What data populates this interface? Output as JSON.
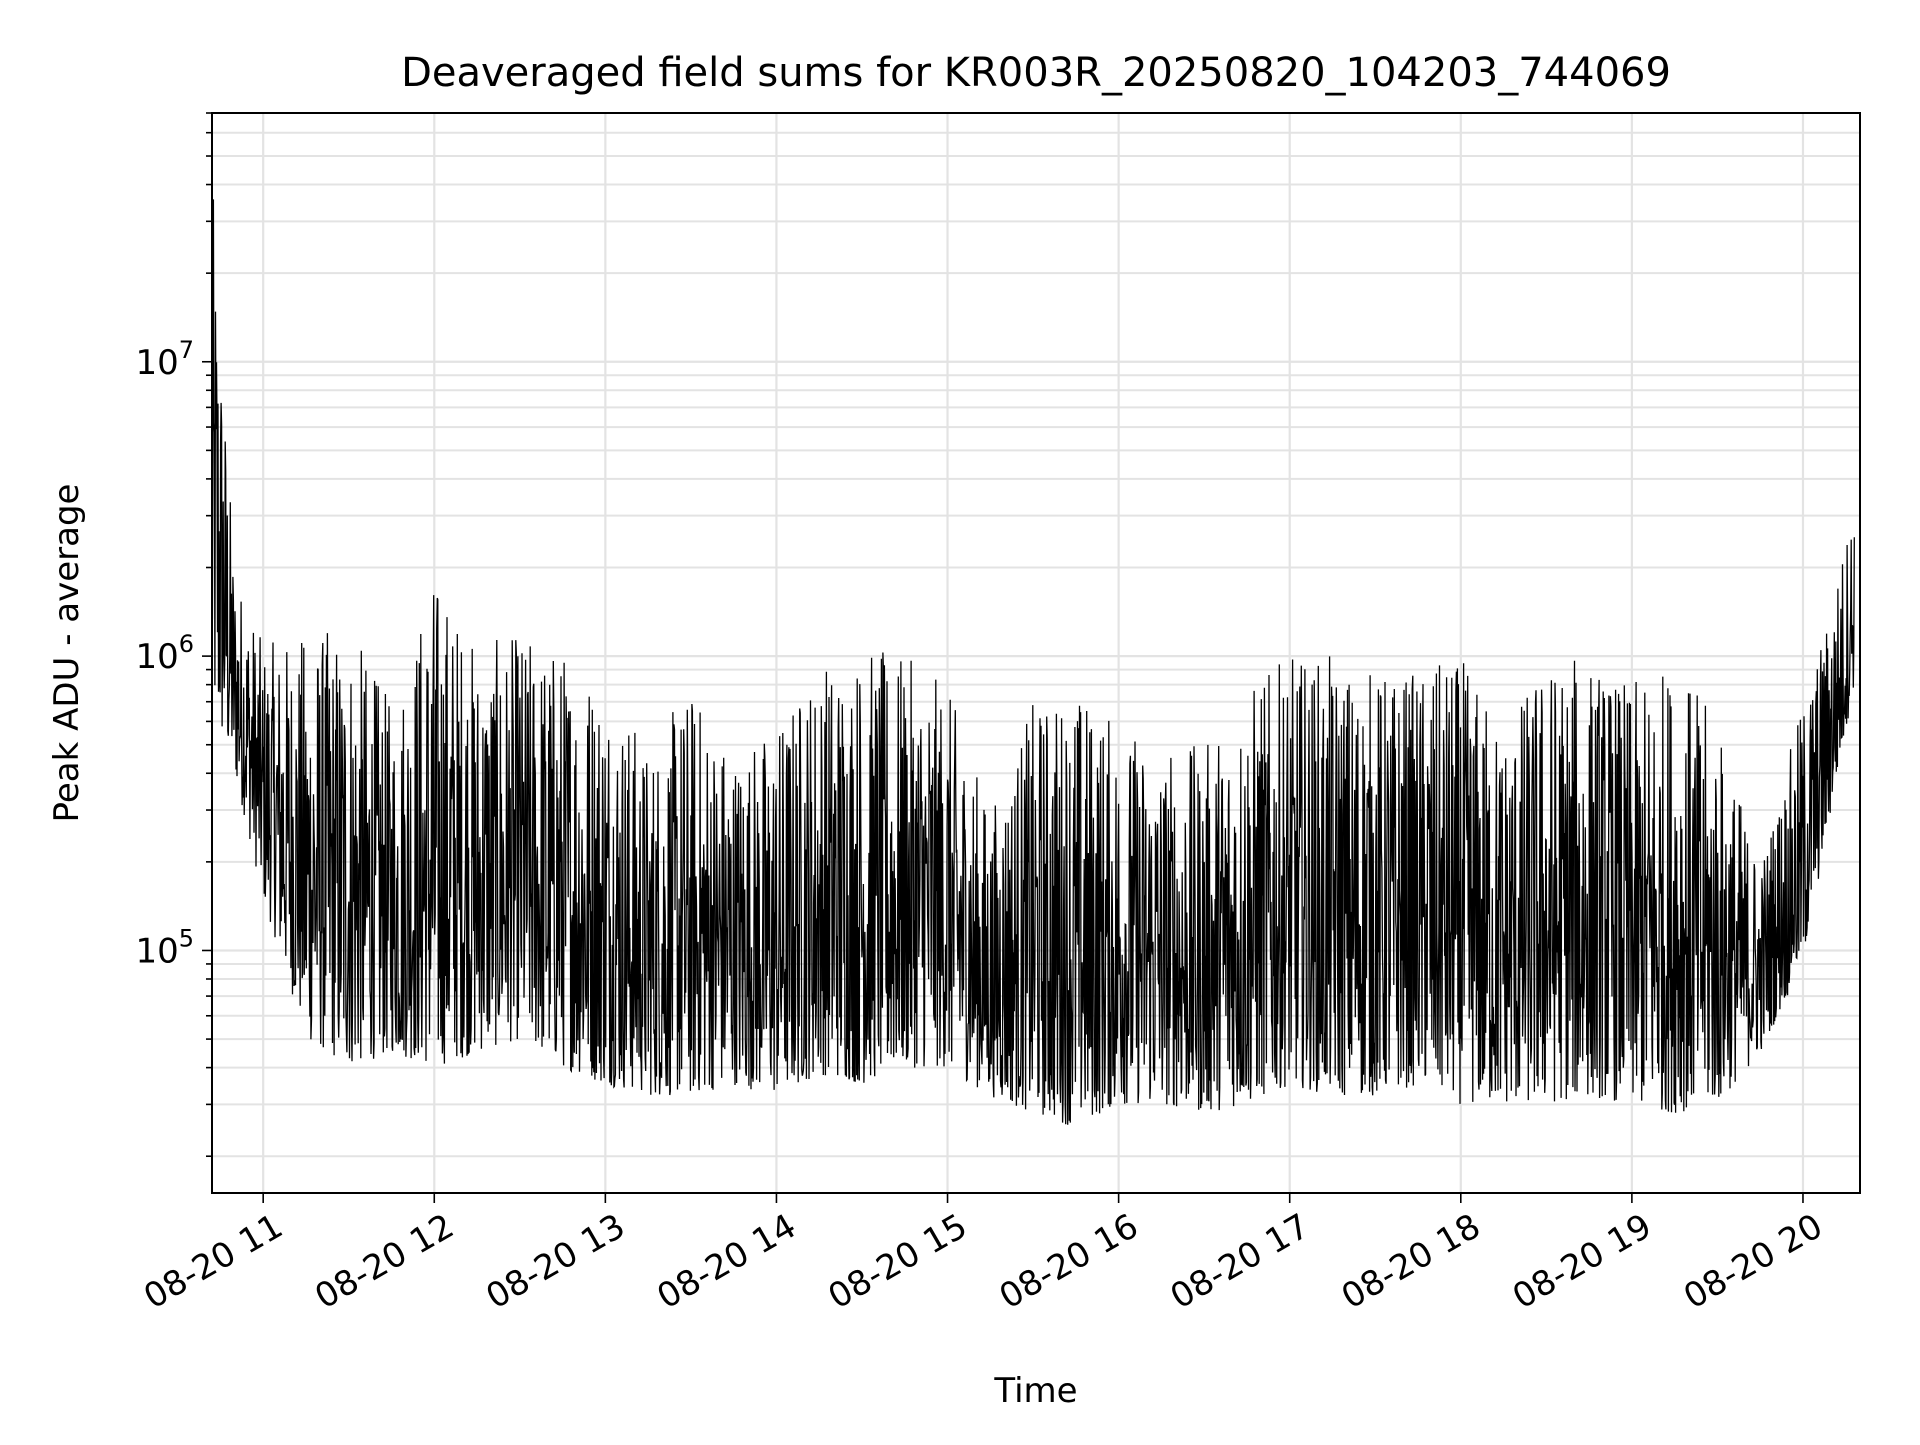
{
  "chart_data": {
    "type": "line",
    "title": "Deaveraged field sums for KR003R_20250820_104203_744069",
    "xlabel": "Time",
    "ylabel": "Peak ADU - average",
    "yscale": "log",
    "ylim": [
      15000,
      70000000
    ],
    "xlim": [
      "2025-08-20 10:42:03",
      "2025-08-20 20:20:00"
    ],
    "grid": true,
    "legend": "none",
    "line_color": "#000000",
    "x_ticks": [
      {
        "value": "2025-08-20 11:00",
        "label": "08-20 11"
      },
      {
        "value": "2025-08-20 12:00",
        "label": "08-20 12"
      },
      {
        "value": "2025-08-20 13:00",
        "label": "08-20 13"
      },
      {
        "value": "2025-08-20 14:00",
        "label": "08-20 14"
      },
      {
        "value": "2025-08-20 15:00",
        "label": "08-20 15"
      },
      {
        "value": "2025-08-20 16:00",
        "label": "08-20 16"
      },
      {
        "value": "2025-08-20 17:00",
        "label": "08-20 17"
      },
      {
        "value": "2025-08-20 18:00",
        "label": "08-20 18"
      },
      {
        "value": "2025-08-20 19:00",
        "label": "08-20 19"
      },
      {
        "value": "2025-08-20 20:00",
        "label": "08-20 20"
      }
    ],
    "y_ticks": [
      {
        "value": 100000,
        "base": "10",
        "exp": "5"
      },
      {
        "value": 1000000,
        "base": "10",
        "exp": "6"
      },
      {
        "value": 10000000,
        "base": "10",
        "exp": "7"
      }
    ],
    "x": [
      "2025-08-20 10:42",
      "2025-08-20 10:50",
      "2025-08-20 11:00",
      "2025-08-20 11:15",
      "2025-08-20 11:30",
      "2025-08-20 11:45",
      "2025-08-20 12:00",
      "2025-08-20 12:15",
      "2025-08-20 12:30",
      "2025-08-20 12:45",
      "2025-08-20 13:00",
      "2025-08-20 13:15",
      "2025-08-20 13:30",
      "2025-08-20 13:45",
      "2025-08-20 14:00",
      "2025-08-20 14:15",
      "2025-08-20 14:30",
      "2025-08-20 14:45",
      "2025-08-20 15:00",
      "2025-08-20 15:15",
      "2025-08-20 15:30",
      "2025-08-20 15:45",
      "2025-08-20 16:00",
      "2025-08-20 16:15",
      "2025-08-20 16:30",
      "2025-08-20 16:45",
      "2025-08-20 17:00",
      "2025-08-20 17:15",
      "2025-08-20 17:30",
      "2025-08-20 17:45",
      "2025-08-20 18:00",
      "2025-08-20 18:15",
      "2025-08-20 18:30",
      "2025-08-20 18:45",
      "2025-08-20 19:00",
      "2025-08-20 19:15",
      "2025-08-20 19:30",
      "2025-08-20 19:45",
      "2025-08-20 20:00",
      "2025-08-20 20:10",
      "2025-08-20 20:18"
    ],
    "series": [
      {
        "values_upper": [
          45000000,
          2000000,
          1100000,
          1200000,
          1300000,
          700000,
          2000000,
          1100000,
          1200000,
          1100000,
          900000,
          500000,
          800000,
          500000,
          600000,
          1000000,
          1100000,
          1000000,
          800000,
          300000,
          700000,
          800000,
          600000,
          500000,
          500000,
          800000,
          1000000,
          1000000,
          900000,
          900000,
          1000000,
          600000,
          1000000,
          1000000,
          800000,
          1000000,
          600000,
          200000,
          700000,
          1500000,
          3600000
        ],
        "values_lower": [
          600000,
          400000,
          150000,
          50000,
          40000,
          45000,
          40000,
          45000,
          50000,
          40000,
          35000,
          32000,
          32000,
          35000,
          32000,
          38000,
          35000,
          40000,
          40000,
          32000,
          28000,
          25000,
          30000,
          30000,
          28000,
          30000,
          35000,
          32000,
          32000,
          35000,
          30000,
          30000,
          30000,
          32000,
          30000,
          28000,
          30000,
          45000,
          90000,
          300000,
          800000
        ]
      }
    ]
  }
}
